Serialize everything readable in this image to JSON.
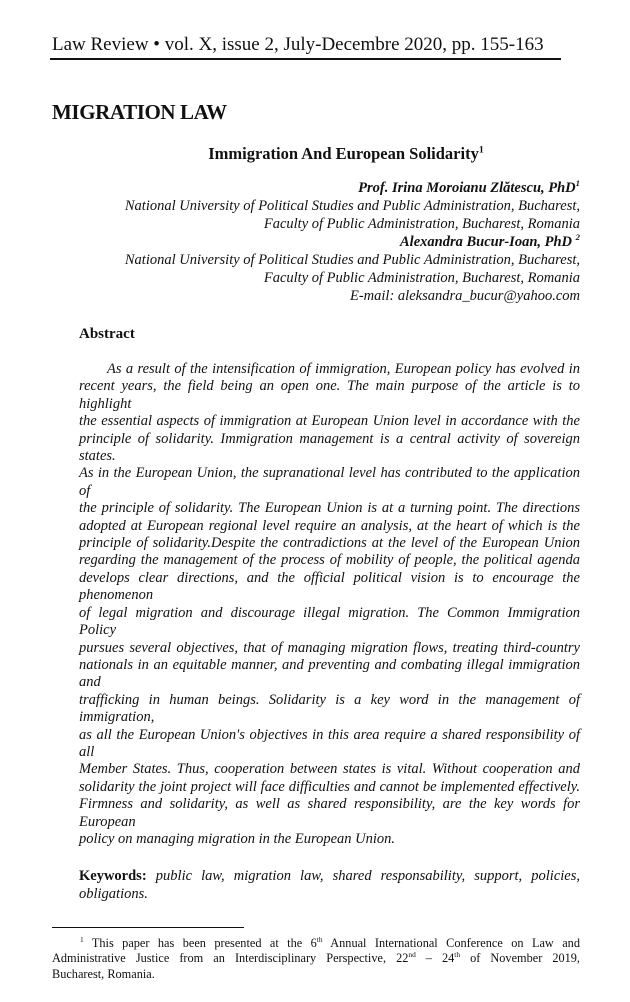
{
  "header": {
    "text": "Law Review • vol. X, issue 2, July-Decembre 2020, pp. 155-163"
  },
  "section": "MIGRATION LAW",
  "title": {
    "text": "Immigration And European Solidarity",
    "note": "1"
  },
  "authors": [
    {
      "name": "Prof. Irina Moroianu Zlătescu, PhD",
      "note": "1",
      "affiliation": [
        "National University of Political Studies and Public Administration, Bucharest,",
        "Faculty of Public Administration, Bucharest, Romania"
      ]
    },
    {
      "name": "Alexandra Bucur-Ioan, PhD ",
      "note": "2",
      "affiliation": [
        "National University of Political Studies and Public Administration, Bucharest,",
        "Faculty of Public Administration, Bucharest, Romania"
      ],
      "email": "E-mail: aleksandra_bucur@yahoo.com"
    }
  ],
  "abstract": {
    "heading": "Abstract",
    "lines": [
      "      As a result of the intensification of immigration, European policy has evolved in",
      "recent years, the field being an open one. The main purpose of the article is to highlight",
      "the essential aspects of immigration at European Union level in accordance with the",
      "principle of solidarity. Immigration management is a central activity of sovereign states.",
      "As in the European Union, the supranational level has contributed to the application of",
      "the principle of solidarity. The European Union is at a turning point. The directions",
      "adopted at European regional level require an analysis, at the heart of which is the",
      "principle of solidarity.Despite the contradictions at the level of the European Union",
      "regarding the management of the process of mobility of people, the political agenda",
      "develops clear directions, and the official political vision is to encourage the phenomenon",
      "of legal migration and discourage illegal migration. The Common Immigration Policy",
      "pursues several objectives, that of managing migration flows, treating third-country",
      "nationals in an equitable manner, and preventing and combating illegal immigration and",
      "trafficking in human beings. Solidarity is a key word in the management of immigration,",
      "as all the European Union's objectives in this area require a shared responsibility of all",
      "Member States. Thus, cooperation between states is vital. Without cooperation and",
      "solidarity the joint project will face difficulties and cannot be implemented effectively.",
      "Firmness and solidarity, as well as shared responsibility, are the key words for European",
      "policy on managing migration in the European Union."
    ]
  },
  "keywords": {
    "label": "Keywords",
    "line1": "public law, migration law, shared responsability, support, policies,",
    "line2": "obligations."
  },
  "footnote": {
    "mark": "1",
    "line1_a": " This paper has been presented at the 6",
    "sup1": "th",
    "line1_b": " Annual International Conference on Law and",
    "line2_a": "Administrative Justice from an Interdisciplinary Perspective, 22",
    "sup2": "nd",
    "line2_b": " – 24",
    "sup3": "th",
    "line2_c": " of November 2019,",
    "line3": "Bucharest, Romania."
  }
}
